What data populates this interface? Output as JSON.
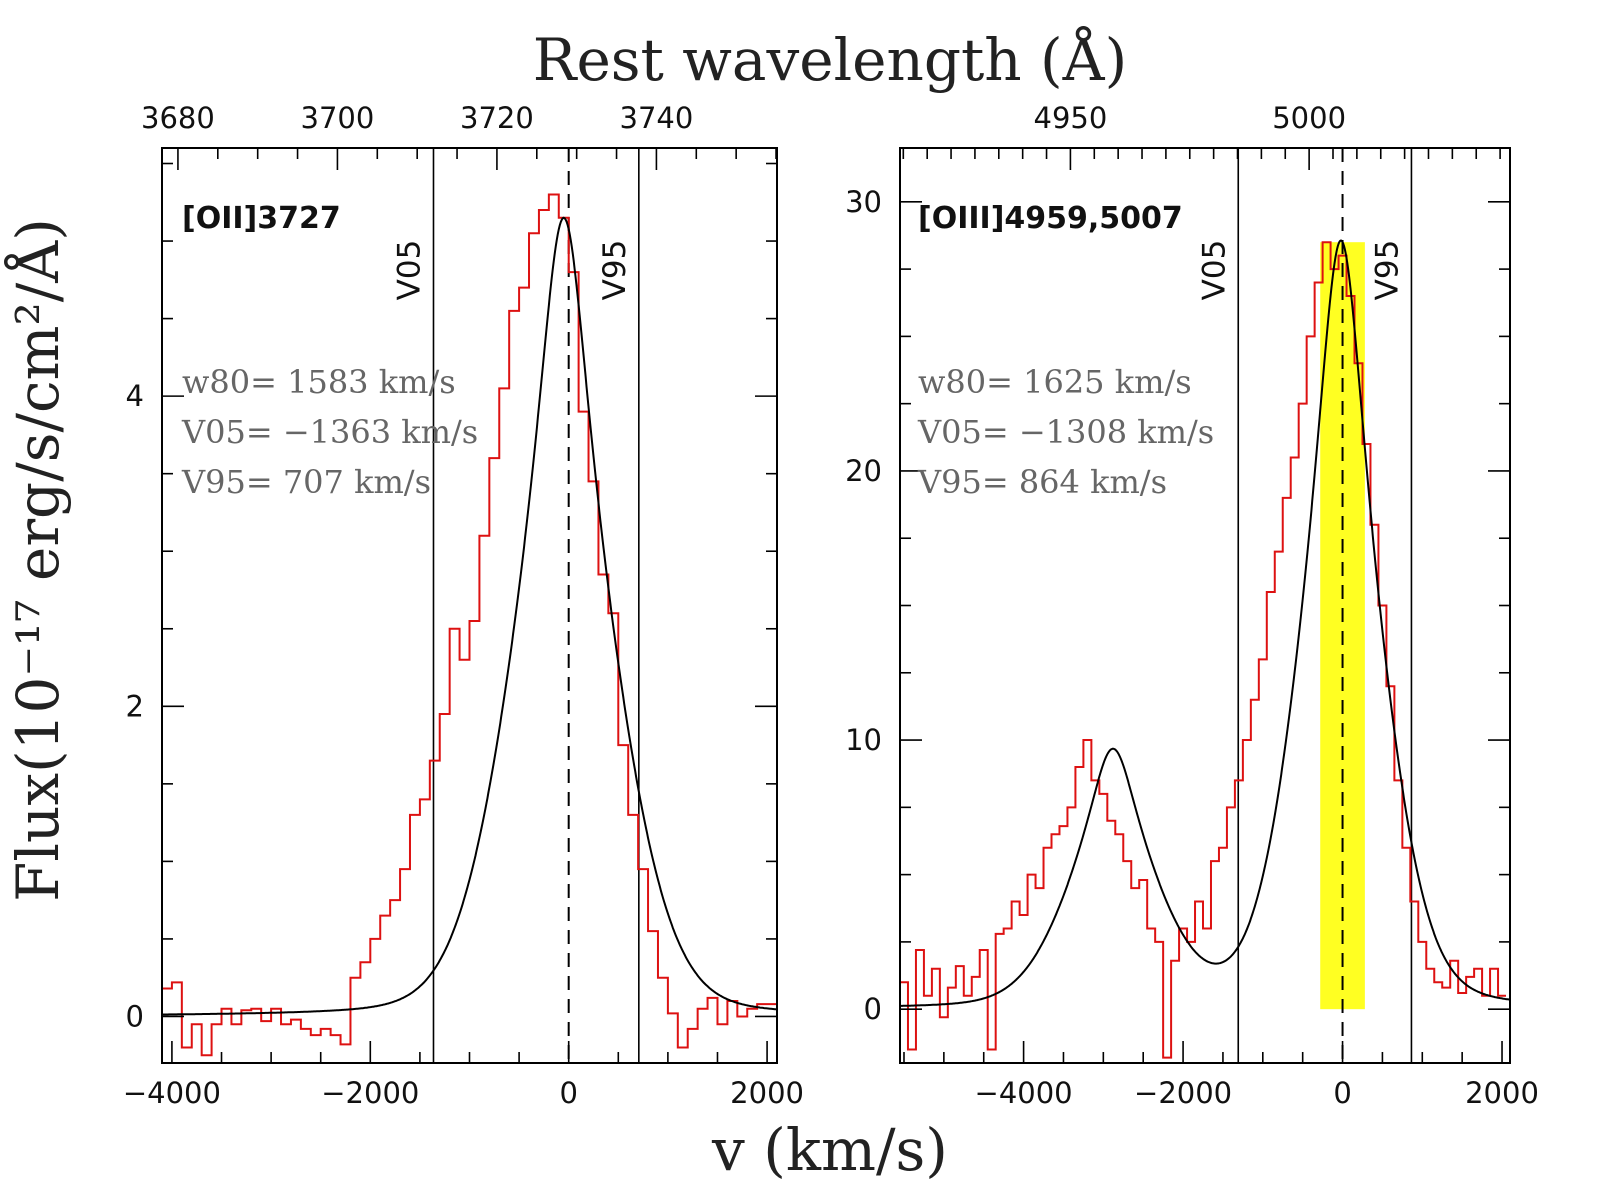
{
  "figure": {
    "top_title": "Rest wavelength (Å)",
    "bottom_title": "v (km/s)",
    "y_title": "Flux(10⁻¹⁷ erg/s/cm²/Å)"
  },
  "chart_data": [
    {
      "type": "line",
      "panel": "left",
      "line_name": "[OII]3727",
      "xlim": [
        -4100,
        2100
      ],
      "ylim": [
        -0.3,
        5.6
      ],
      "xticks": [
        -4000,
        -2000,
        0,
        2000
      ],
      "xtick_labels": [
        "−4000",
        "−2000",
        "0",
        "2000"
      ],
      "yticks": [
        0,
        2,
        4
      ],
      "ytick_labels": [
        "0",
        "2",
        "4"
      ],
      "top_axis": {
        "ticks": [
          3680,
          3700,
          3720,
          3740
        ],
        "labels": [
          "3680",
          "3700",
          "3720",
          "3740"
        ],
        "rest": 3729,
        "units": "Å"
      },
      "v05": -1363,
      "v95": 707,
      "v05_label": "V05",
      "v95_label": "V95",
      "stats": [
        "w80= 1583 km/s",
        "V05= −1363 km/s",
        "V95= 707 km/s"
      ],
      "fit": {
        "name": "model fit",
        "color": "#000000",
        "components": [
          {
            "center": -50,
            "amp": 5.15,
            "sigma": 560,
            "gamma": 300
          }
        ]
      },
      "data_series": {
        "name": "observed spectrum",
        "color": "#dd1111",
        "step": true,
        "x": [
          -4050,
          -3950,
          -3850,
          -3750,
          -3650,
          -3550,
          -3450,
          -3350,
          -3250,
          -3150,
          -3050,
          -2950,
          -2850,
          -2750,
          -2650,
          -2550,
          -2450,
          -2350,
          -2250,
          -2150,
          -2050,
          -1950,
          -1850,
          -1750,
          -1650,
          -1550,
          -1450,
          -1350,
          -1250,
          -1150,
          -1050,
          -950,
          -850,
          -750,
          -650,
          -550,
          -450,
          -350,
          -250,
          -150,
          -50,
          50,
          150,
          250,
          350,
          450,
          550,
          650,
          750,
          850,
          950,
          1050,
          1150,
          1250,
          1350,
          1450,
          1550,
          1650,
          1750,
          1850,
          1950,
          2050
        ],
        "y": [
          0.18,
          0.22,
          -0.2,
          -0.05,
          -0.25,
          -0.05,
          0.05,
          -0.05,
          0.04,
          0.05,
          -0.03,
          0.05,
          -0.05,
          -0.02,
          -0.08,
          -0.12,
          -0.08,
          -0.12,
          -0.18,
          0.25,
          0.35,
          0.5,
          0.65,
          0.75,
          0.95,
          1.3,
          1.4,
          1.65,
          1.95,
          2.5,
          2.3,
          2.55,
          3.1,
          3.6,
          4.05,
          4.55,
          4.7,
          5.05,
          5.2,
          5.3,
          5.15,
          4.8,
          3.9,
          3.45,
          2.85,
          2.6,
          1.75,
          1.3,
          0.95,
          0.55,
          0.25,
          0.02,
          -0.2,
          -0.08,
          0.05,
          0.12,
          -0.05,
          0.1,
          0.0,
          0.05,
          0.08,
          0.08
        ]
      }
    },
    {
      "type": "line",
      "panel": "right",
      "line_name": "[OIII]4959,5007",
      "xlim": [
        -5550,
        2100
      ],
      "ylim": [
        -2,
        32
      ],
      "xticks": [
        -4000,
        -2000,
        0,
        2000
      ],
      "xtick_labels": [
        "−4000",
        "−2000",
        "0",
        "2000"
      ],
      "yticks": [
        0,
        10,
        20,
        30
      ],
      "ytick_labels": [
        "0",
        "10",
        "20",
        "30"
      ],
      "top_axis": {
        "ticks": [
          4950,
          5000
        ],
        "labels": [
          "4950",
          "5000"
        ],
        "rest": 5007,
        "units": "Å"
      },
      "v05": -1308,
      "v95": 864,
      "v05_label": "V05",
      "v95_label": "V95",
      "shaded_band": {
        "x": [
          -280,
          280
        ],
        "y": [
          0,
          28.5
        ],
        "color": "#ffff22"
      },
      "stats": [
        "w80= 1625 km/s",
        "V05= −1308 km/s",
        "V95= 864 km/s"
      ],
      "fit": {
        "name": "model fit",
        "color": "#000000",
        "components": [
          {
            "center": -2880,
            "amp": 9.5,
            "sigma": 600,
            "gamma": 350
          },
          {
            "center": -20,
            "amp": 28.5,
            "sigma": 560,
            "gamma": 340
          }
        ]
      },
      "data_series": {
        "name": "observed spectrum",
        "color": "#dd1111",
        "step": true,
        "x": [
          -5500,
          -5400,
          -5300,
          -5200,
          -5100,
          -5000,
          -4900,
          -4800,
          -4700,
          -4600,
          -4500,
          -4400,
          -4300,
          -4200,
          -4100,
          -4000,
          -3900,
          -3800,
          -3700,
          -3600,
          -3500,
          -3400,
          -3300,
          -3200,
          -3100,
          -3000,
          -2900,
          -2800,
          -2700,
          -2600,
          -2500,
          -2400,
          -2300,
          -2200,
          -2100,
          -2000,
          -1900,
          -1800,
          -1700,
          -1600,
          -1500,
          -1400,
          -1300,
          -1200,
          -1100,
          -1000,
          -900,
          -800,
          -700,
          -600,
          -500,
          -400,
          -300,
          -200,
          -100,
          0,
          100,
          200,
          300,
          400,
          500,
          600,
          700,
          800,
          900,
          1000,
          1100,
          1200,
          1300,
          1400,
          1500,
          1600,
          1700,
          1800,
          1900,
          2000
        ],
        "y": [
          1.0,
          -1.5,
          2.2,
          0.5,
          1.5,
          -0.3,
          0.8,
          1.6,
          0.5,
          1.2,
          2.2,
          -1.5,
          2.8,
          3.0,
          4.0,
          3.5,
          5.0,
          4.5,
          6.0,
          6.5,
          6.8,
          7.5,
          9.0,
          10.0,
          8.5,
          8.0,
          7.0,
          6.5,
          5.5,
          4.5,
          4.8,
          3.0,
          2.5,
          -1.8,
          1.8,
          3.0,
          2.5,
          4.0,
          3.0,
          5.5,
          6.0,
          7.5,
          8.5,
          10.0,
          11.5,
          13.0,
          15.5,
          17.0,
          19.0,
          20.5,
          22.5,
          25.0,
          27.0,
          28.5,
          27.5,
          28.0,
          26.5,
          24.0,
          21.0,
          18.0,
          15.0,
          12.0,
          8.5,
          6.0,
          4.0,
          2.5,
          1.5,
          1.0,
          0.8,
          1.8,
          0.6,
          1.2,
          1.5,
          0.5,
          1.5,
          0.5
        ]
      }
    }
  ]
}
